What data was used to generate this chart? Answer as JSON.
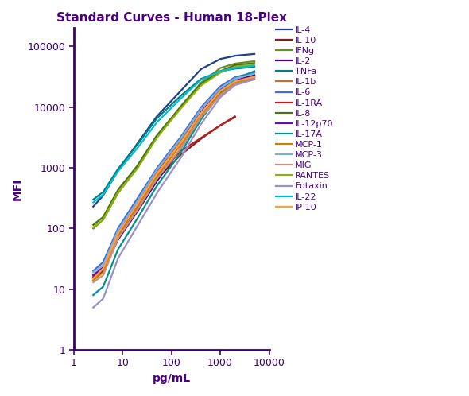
{
  "title": "Standard Curves - Human 18-Plex",
  "xlabel": "pg/mL",
  "ylabel": "MFI",
  "xlim": [
    1,
    10000
  ],
  "ylim": [
    1,
    200000
  ],
  "text_color": "#4b0082",
  "axis_color": "#3d006e",
  "series": [
    {
      "label": "IL-4",
      "color": "#1f3f8f",
      "x": [
        2.5,
        4,
        8,
        20,
        50,
        150,
        400,
        1000,
        2000,
        5000
      ],
      "y": [
        230,
        350,
        900,
        2500,
        7000,
        18000,
        42000,
        62000,
        70000,
        75000
      ]
    },
    {
      "label": "IL-10",
      "color": "#8b1a1a",
      "x": [
        2.5,
        4,
        8,
        20,
        50,
        150,
        400,
        1000,
        2000
      ],
      "y": [
        17,
        22,
        70,
        200,
        650,
        1600,
        3000,
        5000,
        7000
      ]
    },
    {
      "label": "IFNg",
      "color": "#6b8e23",
      "x": [
        2.5,
        4,
        8,
        20,
        50,
        150,
        400,
        1000,
        2000,
        5000
      ],
      "y": [
        100,
        140,
        380,
        1000,
        3200,
        10000,
        25000,
        44000,
        52000,
        57000
      ]
    },
    {
      "label": "IL-2",
      "color": "#4b0082",
      "x": [
        2.5,
        4,
        8,
        20,
        50,
        150,
        400,
        1000,
        2000,
        5000
      ],
      "y": [
        15,
        20,
        65,
        190,
        600,
        2000,
        7000,
        18000,
        27000,
        34000
      ]
    },
    {
      "label": "TNFa",
      "color": "#008080",
      "x": [
        2.5,
        4,
        8,
        20,
        50,
        150,
        400,
        1000,
        2000,
        5000
      ],
      "y": [
        300,
        400,
        950,
        2400,
        6500,
        15000,
        29000,
        39000,
        43000,
        46000
      ]
    },
    {
      "label": "IL-1b",
      "color": "#c87020",
      "x": [
        2.5,
        4,
        8,
        20,
        50,
        150,
        400,
        1000,
        2000,
        5000
      ],
      "y": [
        15,
        22,
        85,
        260,
        850,
        2700,
        8000,
        18000,
        26000,
        31000
      ]
    },
    {
      "label": "IL-6",
      "color": "#4169e1",
      "x": [
        2.5,
        4,
        8,
        20,
        50,
        150,
        400,
        1000,
        2000,
        5000
      ],
      "y": [
        20,
        28,
        100,
        310,
        980,
        3100,
        9800,
        22000,
        31000,
        37000
      ]
    },
    {
      "label": "IL-1RA",
      "color": "#b22222",
      "x": [
        2.5,
        4,
        8,
        20,
        50,
        150,
        400,
        1000,
        2000
      ],
      "y": [
        16,
        22,
        78,
        225,
        700,
        1850,
        3100,
        5000,
        6800
      ]
    },
    {
      "label": "IL-8",
      "color": "#4a7020",
      "x": [
        2.5,
        4,
        8,
        20,
        50,
        150,
        400,
        1000,
        2000,
        5000
      ],
      "y": [
        115,
        155,
        430,
        1080,
        3400,
        9800,
        24000,
        39000,
        49000,
        53000
      ]
    },
    {
      "label": "IL-12p70",
      "color": "#6a0dad",
      "x": [
        2.5,
        4,
        8,
        20,
        50,
        150,
        400,
        1000,
        2000,
        5000
      ],
      "y": [
        17,
        23,
        82,
        250,
        820,
        2500,
        8200,
        19500,
        27000,
        32000
      ]
    },
    {
      "label": "IL-17A",
      "color": "#009090",
      "x": [
        2.5,
        4,
        8,
        20,
        50,
        150,
        400,
        1000,
        2000,
        5000
      ],
      "y": [
        8,
        11,
        45,
        145,
        500,
        1700,
        6200,
        17000,
        29000,
        39000
      ]
    },
    {
      "label": "MCP-1",
      "color": "#d08000",
      "x": [
        2.5,
        4,
        8,
        20,
        50,
        150,
        400,
        1000,
        2000,
        5000
      ],
      "y": [
        14,
        19,
        72,
        220,
        720,
        2300,
        7200,
        16500,
        24500,
        29500
      ]
    },
    {
      "label": "MCP-3",
      "color": "#7ab0d8",
      "x": [
        2.5,
        4,
        8,
        20,
        50,
        150,
        400,
        1000,
        2000,
        5000
      ],
      "y": [
        19,
        25,
        92,
        280,
        920,
        2900,
        9200,
        20500,
        29500,
        35500
      ]
    },
    {
      "label": "MIG",
      "color": "#c89080",
      "x": [
        2.5,
        4,
        8,
        20,
        50,
        150,
        400,
        1000,
        2000,
        5000
      ],
      "y": [
        13,
        17,
        68,
        200,
        650,
        2000,
        6800,
        15500,
        23500,
        28500
      ]
    },
    {
      "label": "RANTES",
      "color": "#8db600",
      "x": [
        2.5,
        4,
        8,
        20,
        50,
        150,
        400,
        1000,
        2000,
        5000
      ],
      "y": [
        105,
        140,
        390,
        970,
        3100,
        9200,
        22500,
        37000,
        46000,
        51000
      ]
    },
    {
      "label": "Eotaxin",
      "color": "#9b8fc8",
      "x": [
        2.5,
        4,
        8,
        20,
        50,
        150,
        400,
        1000,
        2000,
        5000
      ],
      "y": [
        5,
        7,
        32,
        110,
        380,
        1400,
        5200,
        14500,
        23000,
        29000
      ]
    },
    {
      "label": "IL-22",
      "color": "#00bcd4",
      "x": [
        2.5,
        4,
        8,
        20,
        50,
        150,
        400,
        1000,
        2000,
        5000
      ],
      "y": [
        270,
        360,
        870,
        2100,
        5600,
        13500,
        28000,
        39000,
        44000,
        48000
      ]
    },
    {
      "label": "IP-10",
      "color": "#ffa040",
      "x": [
        2.5,
        4,
        8,
        20,
        50,
        150,
        400,
        1000,
        2000,
        5000
      ],
      "y": [
        15,
        22,
        82,
        250,
        800,
        2500,
        7900,
        18500,
        26500,
        31500
      ]
    }
  ],
  "title_fontsize": 11,
  "label_fontsize": 10,
  "tick_fontsize": 9,
  "legend_fontsize": 8,
  "line_width": 1.6,
  "background_color": "#ffffff"
}
